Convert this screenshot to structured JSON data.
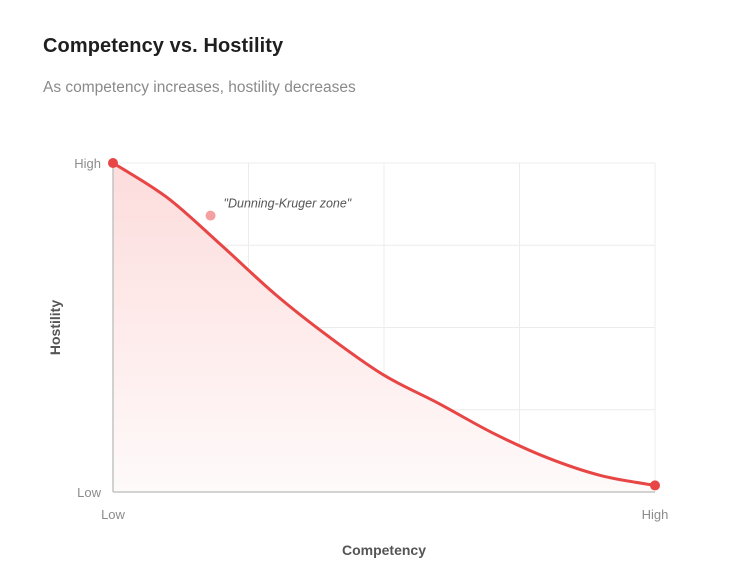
{
  "header": {
    "title": "Competency vs. Hostility",
    "subtitle": "As competency increases, hostility decreases"
  },
  "chart_data": {
    "type": "area",
    "title": "Competency vs. Hostility",
    "subtitle": "As competency increases, hostility decreases",
    "xlabel": "Competency",
    "ylabel": "Hostility",
    "xlim": [
      0,
      100
    ],
    "ylim": [
      0,
      100
    ],
    "x_ticks": [
      {
        "value": 0,
        "label": "Low"
      },
      {
        "value": 100,
        "label": "High"
      }
    ],
    "y_ticks": [
      {
        "value": 0,
        "label": "Low"
      },
      {
        "value": 100,
        "label": "High"
      }
    ],
    "grid": true,
    "series": [
      {
        "x": [
          0,
          10,
          20,
          30,
          40,
          50,
          60,
          70,
          80,
          90,
          100
        ],
        "y": [
          100,
          89.5,
          75,
          60,
          47,
          35.5,
          27,
          18,
          10.5,
          5,
          2
        ],
        "color": "#e84545"
      }
    ],
    "endpoints": [
      {
        "x": 0,
        "y": 100
      },
      {
        "x": 100,
        "y": 2
      }
    ],
    "annotations": [
      {
        "x": 18,
        "y": 84,
        "text": "\"Dunning-Kruger zone\"",
        "color": "#f4a0a0"
      }
    ],
    "colors": {
      "line": "#e84545",
      "fill_top": "#fddcdc",
      "fill_bottom": "#fefafa",
      "grid": "#ececec",
      "axis": "#c4c4c4"
    }
  }
}
